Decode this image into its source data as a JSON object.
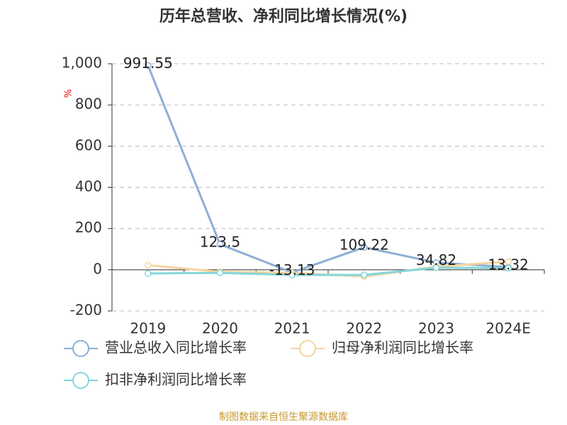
{
  "chart_data": {
    "type": "line",
    "title": "历年总营收、净利同比增长情况(%)",
    "y_label": "%",
    "categories": [
      "2019",
      "2020",
      "2021",
      "2022",
      "2023",
      "2024E"
    ],
    "series": [
      {
        "name": "营业总收入同比增长率",
        "color": "#8eaed6",
        "values": [
          991.55,
          123.5,
          -13.13,
          109.22,
          34.82,
          13.32
        ],
        "show_labels": true
      },
      {
        "name": "归母净利润同比增长率",
        "color": "#f6d49c",
        "values": [
          22,
          -10,
          -15,
          -33,
          15,
          40
        ],
        "show_labels": false
      },
      {
        "name": "扣非净利润同比增长率",
        "color": "#85d6da",
        "values": [
          -18,
          -15,
          -25,
          -25,
          10,
          8
        ],
        "show_labels": false
      }
    ],
    "ylim": [
      -200,
      1000
    ],
    "yticks": [
      -200,
      0,
      200,
      400,
      600,
      800,
      {
        "value": 1000,
        "label": "1,000"
      }
    ],
    "grid": true,
    "footer": "制图数据来自恒生聚源数据库"
  }
}
